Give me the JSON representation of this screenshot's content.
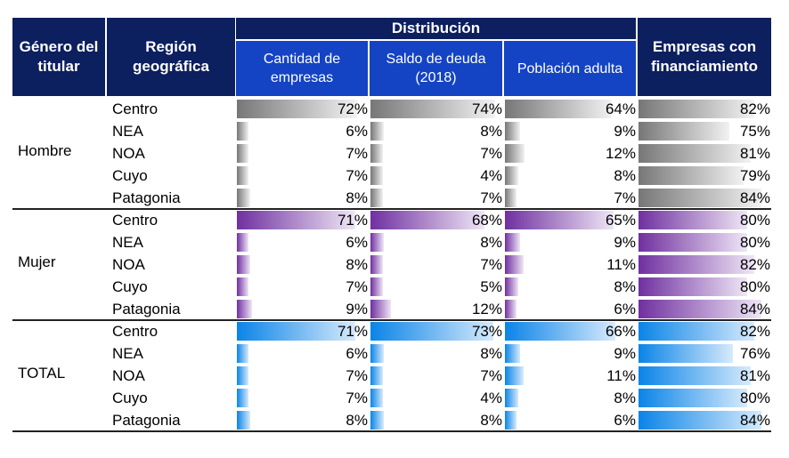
{
  "header": {
    "col_gender": "Género del titular",
    "col_region": "Región geográfica",
    "group_distribution": "Distribución",
    "col_companies": "Cantidad de empresas",
    "col_debt": "Saldo de deuda (2018)",
    "col_population": "Población adulta",
    "col_financed": "Empresas con financiamiento"
  },
  "colors": {
    "header_dark": "#0c1f5e",
    "header_blue": "#1443c4",
    "hombre_bar": "#777777",
    "mujer_bar": "#7030a0",
    "total_bar": "#0a84e8"
  },
  "chart_data": {
    "type": "table",
    "columns": [
      "Cantidad de empresas",
      "Saldo de deuda (2018)",
      "Población adulta",
      "Empresas con financiamiento"
    ],
    "groups": [
      {
        "label": "Hombre",
        "rows": [
          {
            "region": "Centro",
            "values": [
              "72%",
              "74%",
              "64%",
              "82%"
            ]
          },
          {
            "region": "NEA",
            "values": [
              "6%",
              "8%",
              "9%",
              "75%"
            ]
          },
          {
            "region": "NOA",
            "values": [
              "7%",
              "7%",
              "12%",
              "81%"
            ]
          },
          {
            "region": "Cuyo",
            "values": [
              "7%",
              "4%",
              "8%",
              "79%"
            ]
          },
          {
            "region": "Patagonia",
            "values": [
              "8%",
              "7%",
              "7%",
              "84%"
            ]
          }
        ]
      },
      {
        "label": "Mujer",
        "rows": [
          {
            "region": "Centro",
            "values": [
              "71%",
              "68%",
              "65%",
              "80%"
            ]
          },
          {
            "region": "NEA",
            "values": [
              "6%",
              "8%",
              "9%",
              "80%"
            ]
          },
          {
            "region": "NOA",
            "values": [
              "8%",
              "7%",
              "11%",
              "82%"
            ]
          },
          {
            "region": "Cuyo",
            "values": [
              "7%",
              "5%",
              "8%",
              "80%"
            ]
          },
          {
            "region": "Patagonia",
            "values": [
              "9%",
              "12%",
              "6%",
              "84%"
            ]
          }
        ]
      },
      {
        "label": "TOTAL",
        "rows": [
          {
            "region": "Centro",
            "values": [
              "71%",
              "73%",
              "66%",
              "82%"
            ]
          },
          {
            "region": "NEA",
            "values": [
              "6%",
              "8%",
              "9%",
              "76%"
            ]
          },
          {
            "region": "NOA",
            "values": [
              "7%",
              "7%",
              "11%",
              "81%"
            ]
          },
          {
            "region": "Cuyo",
            "values": [
              "7%",
              "4%",
              "8%",
              "80%"
            ]
          },
          {
            "region": "Patagonia",
            "values": [
              "8%",
              "8%",
              "6%",
              "84%"
            ]
          }
        ]
      }
    ]
  }
}
